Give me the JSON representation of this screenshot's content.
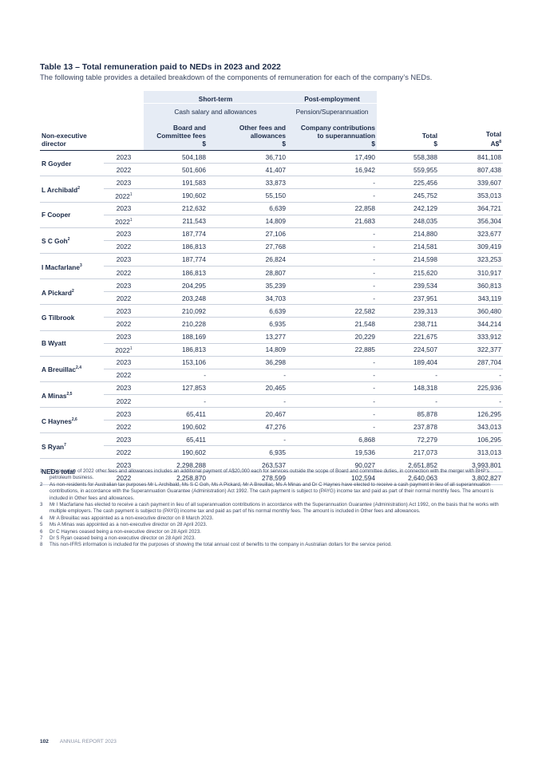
{
  "header": {
    "title": "Table 13 – Total remuneration paid to NEDs in 2023 and 2022",
    "subtitle": "The following table provides a detailed breakdown of the components of remuneration for each of the company’s NEDs."
  },
  "table": {
    "group_row": [
      "Short-term",
      "Post-employment"
    ],
    "subgroup_row": [
      "Cash salary and allowances",
      "Pension/Superannuation"
    ],
    "columns": [
      {
        "lines": [
          "Non-executive",
          "director"
        ]
      },
      {
        "lines": [
          "Board and",
          "Committee fees",
          "$"
        ]
      },
      {
        "lines": [
          "Other fees and",
          "allowances",
          "$"
        ]
      },
      {
        "lines": [
          "Company contributions",
          "to superannuation",
          "$"
        ]
      },
      {
        "lines": [
          "Total",
          "$"
        ]
      },
      {
        "lines": [
          "Total",
          "A$"
        ],
        "note": "8"
      }
    ],
    "directors": [
      {
        "name": "R Goyder",
        "rows": [
          {
            "year": "2023",
            "cells": [
              "504,188",
              "36,710",
              "17,490",
              "558,388",
              "841,108"
            ]
          },
          {
            "year": "2022",
            "cells": [
              "501,606",
              "41,407",
              "16,942",
              "559,955",
              "807,438"
            ]
          }
        ]
      },
      {
        "name": "L Archibald",
        "note": "2",
        "rows": [
          {
            "year": "2023",
            "cells": [
              "191,583",
              "33,873",
              "-",
              "225,456",
              "339,607"
            ]
          },
          {
            "year": "2022",
            "note": "1",
            "cells": [
              "190,602",
              "55,150",
              "-",
              "245,752",
              "353,013"
            ]
          }
        ]
      },
      {
        "name": "F Cooper",
        "rows": [
          {
            "year": "2023",
            "cells": [
              "212,632",
              "6,639",
              "22,858",
              "242,129",
              "364,721"
            ]
          },
          {
            "year": "2022",
            "note": "1",
            "cells": [
              "211,543",
              "14,809",
              "21,683",
              "248,035",
              "356,304"
            ]
          }
        ]
      },
      {
        "name": "S C Goh",
        "note": "2",
        "rows": [
          {
            "year": "2023",
            "cells": [
              "187,774",
              "27,106",
              "-",
              "214,880",
              "323,677"
            ]
          },
          {
            "year": "2022",
            "cells": [
              "186,813",
              "27,768",
              "-",
              "214,581",
              "309,419"
            ]
          }
        ]
      },
      {
        "name": "I Macfarlane",
        "note": "3",
        "rows": [
          {
            "year": "2023",
            "cells": [
              "187,774",
              "26,824",
              "-",
              "214,598",
              "323,253"
            ]
          },
          {
            "year": "2022",
            "cells": [
              "186,813",
              "28,807",
              "-",
              "215,620",
              "310,917"
            ]
          }
        ]
      },
      {
        "name": "A Pickard",
        "note": "2",
        "rows": [
          {
            "year": "2023",
            "cells": [
              "204,295",
              "35,239",
              "-",
              "239,534",
              "360,813"
            ]
          },
          {
            "year": "2022",
            "cells": [
              "203,248",
              "34,703",
              "-",
              "237,951",
              "343,119"
            ]
          }
        ]
      },
      {
        "name": "G Tilbrook",
        "rows": [
          {
            "year": "2023",
            "cells": [
              "210,092",
              "6,639",
              "22,582",
              "239,313",
              "360,480"
            ]
          },
          {
            "year": "2022",
            "cells": [
              "210,228",
              "6,935",
              "21,548",
              "238,711",
              "344,214"
            ]
          }
        ]
      },
      {
        "name": "B Wyatt",
        "rows": [
          {
            "year": "2023",
            "cells": [
              "188,169",
              "13,277",
              "20,229",
              "221,675",
              "333,912"
            ]
          },
          {
            "year": "2022",
            "note": "1",
            "cells": [
              "186,813",
              "14,809",
              "22,885",
              "224,507",
              "322,377"
            ]
          }
        ]
      },
      {
        "name": "A Breuillac",
        "note": "2,4",
        "rows": [
          {
            "year": "2023",
            "cells": [
              "153,106",
              "36,298",
              "-",
              "189,404",
              "287,704"
            ]
          },
          {
            "year": "2022",
            "cells": [
              "-",
              "-",
              "-",
              "-",
              "-"
            ]
          }
        ]
      },
      {
        "name": "A Minas",
        "note": "2,5",
        "rows": [
          {
            "year": "2023",
            "cells": [
              "127,853",
              "20,465",
              "-",
              "148,318",
              "225,936"
            ]
          },
          {
            "year": "2022",
            "cells": [
              "-",
              "-",
              "-",
              "-",
              "-"
            ]
          }
        ]
      },
      {
        "name": "C Haynes",
        "note": "2,6",
        "rows": [
          {
            "year": "2023",
            "cells": [
              "65,411",
              "20,467",
              "-",
              "85,878",
              "126,295"
            ]
          },
          {
            "year": "2022",
            "cells": [
              "190,602",
              "47,276",
              "-",
              "237,878",
              "343,013"
            ]
          }
        ]
      },
      {
        "name": "S Ryan",
        "note": "7",
        "rows": [
          {
            "year": "2023",
            "cells": [
              "65,411",
              "-",
              "6,868",
              "72,279",
              "106,295"
            ]
          },
          {
            "year": "2022",
            "cells": [
              "190,602",
              "6,935",
              "19,536",
              "217,073",
              "313,013"
            ]
          }
        ]
      },
      {
        "name": "NEDs total",
        "rows": [
          {
            "year": "2023",
            "cells": [
              "2,298,288",
              "263,537",
              "90,027",
              "2,651,852",
              "3,993,801"
            ]
          },
          {
            "year": "2022",
            "cells": [
              "2,258,870",
              "278,599",
              "102,594",
              "2,640,063",
              "3,802,827"
            ]
          }
        ]
      }
    ]
  },
  "footnotes": [
    {
      "number": "1",
      "text": "A proportion of 2022 other fees and allowances includes an additional payment of A$20,000 each for services outside the scope of Board and committee duties, in connection with the merger with BHP’s petroleum business."
    },
    {
      "number": "2",
      "text": "As non-residents for Australian tax purposes Mr L Archibald, Ms S C Goh, Ms A Pickard, Mr A Breuillac, Ms A Minas and Dr C Haynes have elected to receive a cash payment in lieu of all superannuation contributions, in accordance with the Superannuation Guarantee (Administration) Act 1992. The cash payment is subject to (PAYG) income tax and paid as part of their normal monthly fees. The amount is included in Other fees and allowances."
    },
    {
      "number": "3",
      "text": "Mr I Macfarlane has elected to receive a cash payment in lieu of all superannuation contributions in accordance with the Superannuation Guarantee (Administration) Act 1992, on the basis that he works with multiple employers. The cash payment is subject to (PAYG) income tax and paid as part of his normal monthly fees. The amount is included in Other fees and allowances."
    },
    {
      "number": "4",
      "text": "Mr A Breuillac was appointed as a non-executive director on 8 March 2023."
    },
    {
      "number": "5",
      "text": "Ms A Minas was appointed as a non-executive director on 28 April 2023."
    },
    {
      "number": "6",
      "text": "Dr C Haynes ceased being a non-executive director on 28 April 2023."
    },
    {
      "number": "7",
      "text": "Dr S Ryan ceased being a non-executive director on 28 April 2023."
    },
    {
      "number": "8",
      "text": "This non-IFRS information is included for the purposes of showing the total annual cost of benefits to the company in Australian dollars for the service period."
    }
  ],
  "footer": {
    "page": "102",
    "label": "ANNUAL REPORT 2023"
  }
}
